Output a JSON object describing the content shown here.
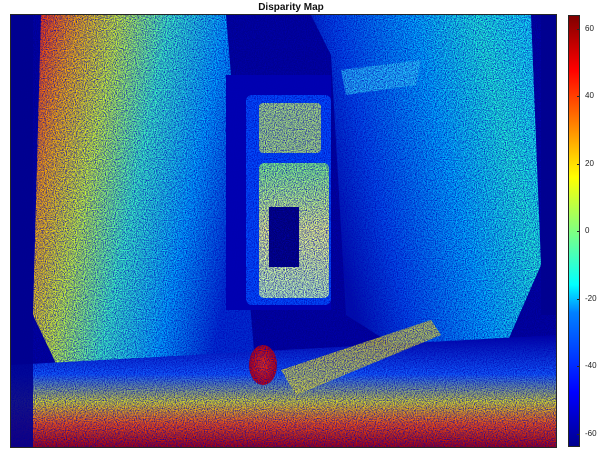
{
  "chart_data": {
    "type": "heatmap",
    "title": "Disparity Map",
    "xlabel": "",
    "ylabel": "",
    "colormap": "jet",
    "color_limits": [
      -64,
      64
    ],
    "colorbar": {
      "placement": "right",
      "ticks": [
        60,
        40,
        20,
        0,
        -20,
        -40,
        -60
      ],
      "tick_labels": [
        "60",
        "40",
        "20",
        "0",
        "-20",
        "-40",
        "-60"
      ]
    },
    "axes_visible": false,
    "grid": false
  }
}
